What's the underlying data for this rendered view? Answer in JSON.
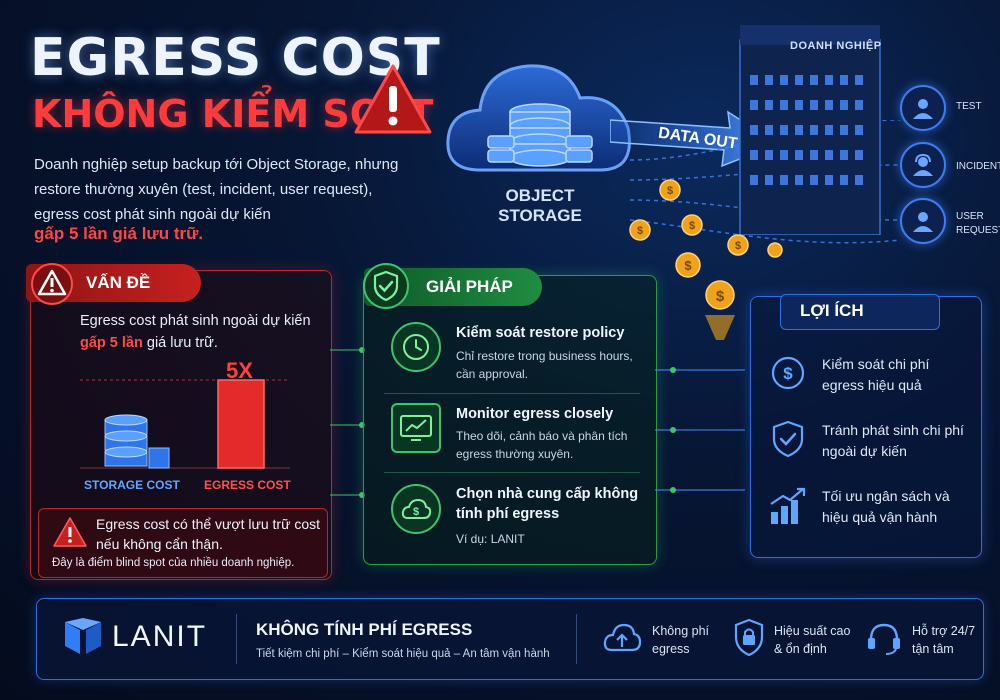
{
  "header": {
    "title_line1": "EGRESS COST",
    "title_line2": "KHÔNG KIỂM SOÁT",
    "intro": "Doanh nghiệp setup backup tới Object Storage, nhưng restore thường xuyên (test, incident, user request), egress cost phát sinh ngoài dự kiến",
    "intro_highlight": "gấp 5 lần giá lưu trữ."
  },
  "cloud": {
    "label_line1": "OBJECT",
    "label_line2": "STORAGE",
    "arrow_label": "DATA OUT"
  },
  "building": {
    "label": "DOANH NGHIỆP"
  },
  "users": [
    {
      "label_line1": "TEST",
      "label_line2": ""
    },
    {
      "label_line1": "INCIDENT",
      "label_line2": ""
    },
    {
      "label_line1": "USER",
      "label_line2": "REQUEST"
    }
  ],
  "problem": {
    "tab_label": "VẤN ĐỀ",
    "text_line1": "Egress cost phát sinh ngoài dự kiến",
    "text_red": "gấp 5 lần",
    "text_tail": " giá lưu trữ.",
    "multiplier": "5X",
    "bar_storage_label": "STORAGE COST",
    "bar_egress_label": "EGRESS COST",
    "warning_text": "Egress cost có thể vượt lưu trữ cost nếu không cẩn thận.",
    "blind_spot": "Đây là điểm blind spot của nhiều doanh nghiệp."
  },
  "chart_data": {
    "type": "bar",
    "categories": [
      "STORAGE COST",
      "EGRESS COST"
    ],
    "values": [
      1,
      5
    ],
    "title": "",
    "xlabel": "",
    "ylabel": "",
    "annotations": [
      "5X"
    ]
  },
  "solution": {
    "tab_label": "GIẢI PHÁP",
    "items": [
      {
        "title": "Kiểm soát restore policy",
        "desc": "Chỉ restore trong business hours, cần approval.",
        "icon": "clock-icon"
      },
      {
        "title": "Monitor egress closely",
        "desc": "Theo dõi, cảnh báo và phân tích egress thường xuyên.",
        "icon": "monitor-chart-icon"
      },
      {
        "title": "Chọn nhà cung cấp không tính phí egress",
        "desc": "Ví dụ: LANIT",
        "icon": "cloud-dollar-icon"
      }
    ]
  },
  "benefits": {
    "tab_label": "LỢI ÍCH",
    "items": [
      {
        "text": "Kiểm soát chi phí egress hiệu quả",
        "icon": "dollar-circle-icon"
      },
      {
        "text": "Tránh phát sinh chi phí ngoài dự kiến",
        "icon": "shield-check-icon"
      },
      {
        "text": "Tối ưu ngân sách và hiệu quả vận hành",
        "icon": "growth-chart-icon"
      }
    ]
  },
  "footer": {
    "brand": "LANIT",
    "title": "KHÔNG TÍNH PHÍ EGRESS",
    "subtitle": "Tiết kiệm chi phí – Kiểm soát hiệu quả – An tâm vận hành",
    "features": [
      {
        "line1": "Không phí",
        "line2": "egress",
        "icon": "cloud-upload-icon"
      },
      {
        "line1": "Hiệu suất cao",
        "line2": "& ổn định",
        "icon": "lock-icon"
      },
      {
        "line1": "Hỗ trợ 24/7",
        "line2": "tận tâm",
        "icon": "headset-icon"
      }
    ]
  },
  "colors": {
    "red": "#ff3b3b",
    "green": "#2c9a4c",
    "blue": "#2b6fe0",
    "gold": "#f0a21a"
  }
}
